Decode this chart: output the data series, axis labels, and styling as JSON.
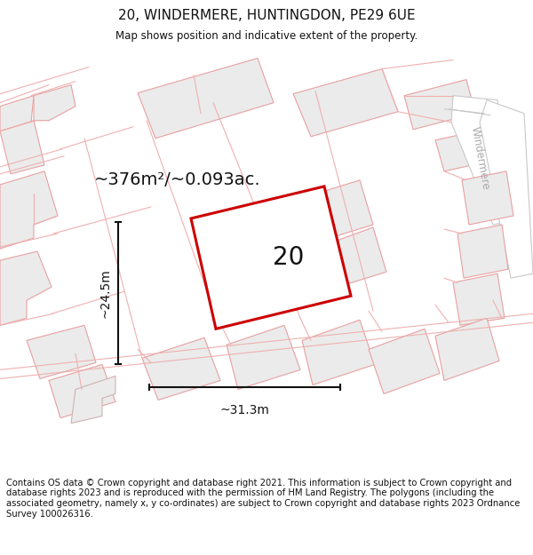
{
  "title": "20, WINDERMERE, HUNTINGDON, PE29 6UE",
  "subtitle": "Map shows position and indicative extent of the property.",
  "footer": "Contains OS data © Crown copyright and database right 2021. This information is subject to Crown copyright and database rights 2023 and is reproduced with the permission of HM Land Registry. The polygons (including the associated geometry, namely x, y co-ordinates) are subject to Crown copyright and database rights 2023 Ordnance Survey 100026316.",
  "area_label": "~376m²/~0.093ac.",
  "plot_number": "20",
  "dim_width": "~31.3m",
  "dim_height": "~24.5m",
  "street_name": "Windermere",
  "map_bg": "#ffffff",
  "plot_outline_color": "#cc0000",
  "building_fill": "#ebebeb",
  "building_stroke": "#e8a0a0",
  "lot_stroke": "#f0b0b0",
  "road_fill": "#ffffff",
  "road_stroke": "#c8c8c8",
  "dim_color": "#111111",
  "title_color": "#111111",
  "title_fontsize": 11,
  "subtitle_fontsize": 8.5,
  "footer_fontsize": 7.2,
  "area_fontsize": 14,
  "plot_num_fontsize": 20,
  "dim_fontsize": 10,
  "street_fontsize": 8.5,
  "street_color": "#aaaaaa"
}
